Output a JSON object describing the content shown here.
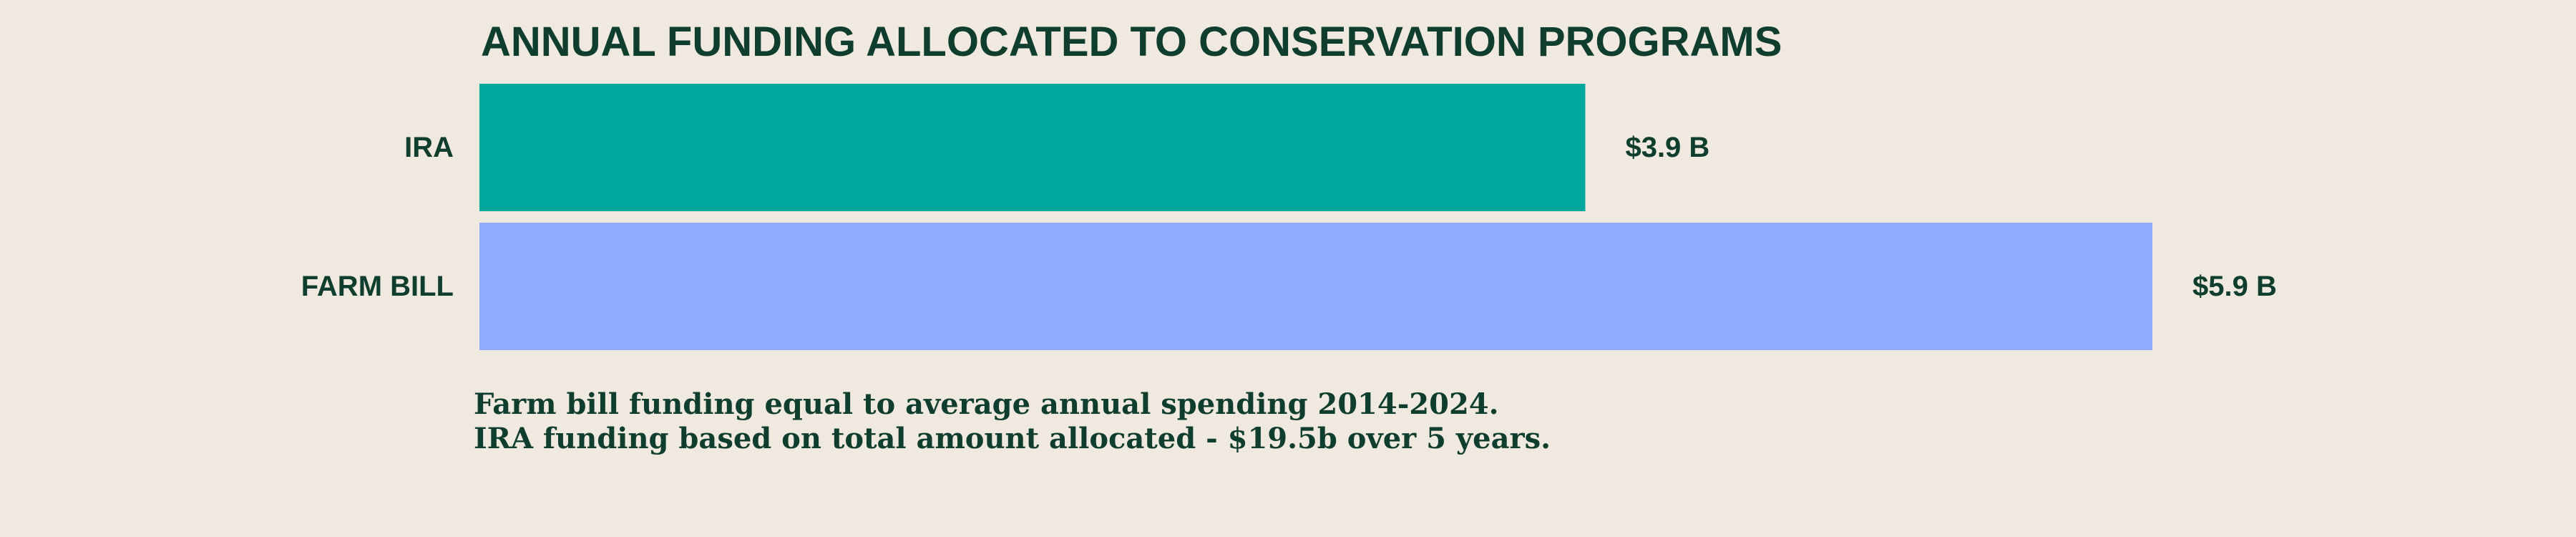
{
  "chart_data": {
    "type": "bar",
    "orientation": "horizontal",
    "title": "ANNUAL FUNDING ALLOCATED TO CONSERVATION PROGRAMS",
    "categories": [
      "IRA",
      "FARM BILL"
    ],
    "values": [
      3.9,
      5.9
    ],
    "value_labels": [
      "$3.9 B",
      "$5.9 B"
    ],
    "unit": "B",
    "xlim": [
      0,
      5.9
    ],
    "colors": [
      "#00a79d",
      "#8eabfd"
    ],
    "grid": false,
    "legend": "none",
    "notes": [
      "Farm bill funding equal to average annual spending 2014-2024.",
      "IRA funding based on total amount allocated - $19.5b over 5 years."
    ]
  },
  "colors": {
    "background": "#efe9df",
    "text": "#0f3d2e"
  }
}
